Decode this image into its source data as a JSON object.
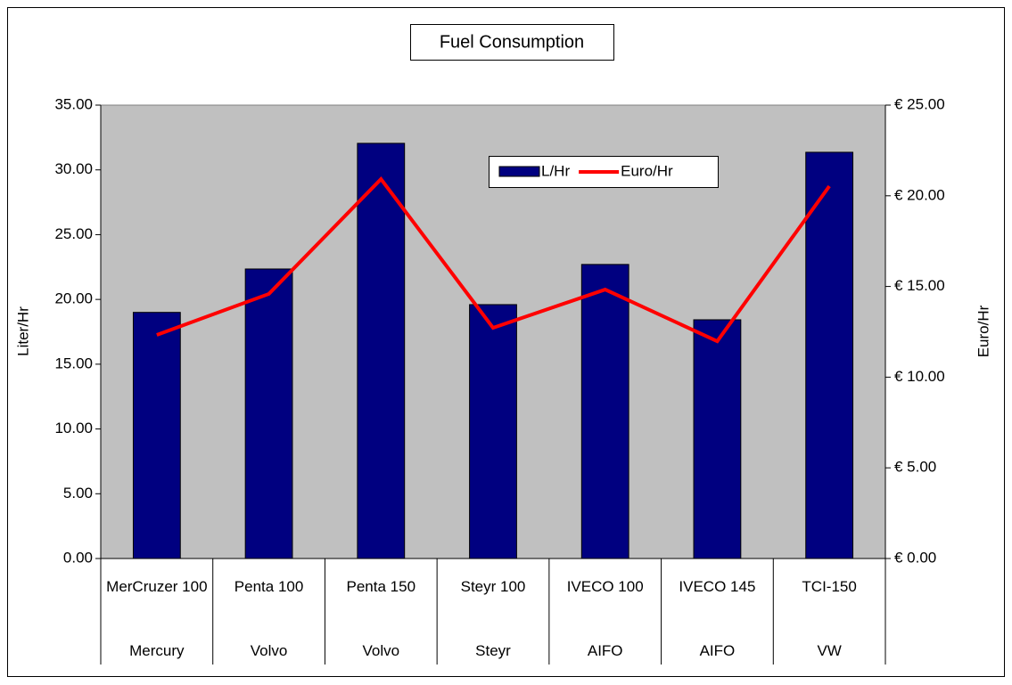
{
  "chart_data": {
    "type": "bar",
    "title": "Fuel Consumption",
    "categories": [
      "MerCruzer 100",
      "Penta 100",
      "Penta 150",
      "Steyr 100",
      "IVECO 100",
      "IVECO 145",
      "TCI-150"
    ],
    "groups": [
      "Mercury",
      "Volvo",
      "Volvo",
      "Steyr",
      "AIFO",
      "AIFO",
      "VW"
    ],
    "series": [
      {
        "name": "L/Hr",
        "type": "bar",
        "color": "#000080",
        "values": [
          19.0,
          22.35,
          32.05,
          19.6,
          22.7,
          18.43,
          31.36
        ]
      },
      {
        "name": "Euro/Hr",
        "type": "line",
        "axis": "y2",
        "color": "#ff0000",
        "values": [
          12.33,
          14.59,
          20.92,
          12.72,
          14.83,
          11.98,
          20.53
        ]
      }
    ],
    "ylabel": "Liter/Hr",
    "y2label": "Euro/Hr",
    "ylim": [
      0,
      35
    ],
    "yticks": [
      {
        "value": 0,
        "label": "0.00"
      },
      {
        "value": 5,
        "label": "5.00"
      },
      {
        "value": 10,
        "label": "10.00"
      },
      {
        "value": 15,
        "label": "15.00"
      },
      {
        "value": 20,
        "label": "20.00"
      },
      {
        "value": 25,
        "label": "25.00"
      },
      {
        "value": 30,
        "label": "30.00"
      },
      {
        "value": 35,
        "label": "35.00"
      }
    ],
    "y2lim": [
      0,
      25
    ],
    "y2ticks": [
      {
        "value": 0,
        "label": "€ 0.00"
      },
      {
        "value": 5,
        "label": "€ 5.00"
      },
      {
        "value": 10,
        "label": "€ 10.00"
      },
      {
        "value": 15,
        "label": "€ 15.00"
      },
      {
        "value": 20,
        "label": "€ 20.00"
      },
      {
        "value": 25,
        "label": "€ 25.00"
      }
    ],
    "plot_background": "#c0c0c0"
  }
}
